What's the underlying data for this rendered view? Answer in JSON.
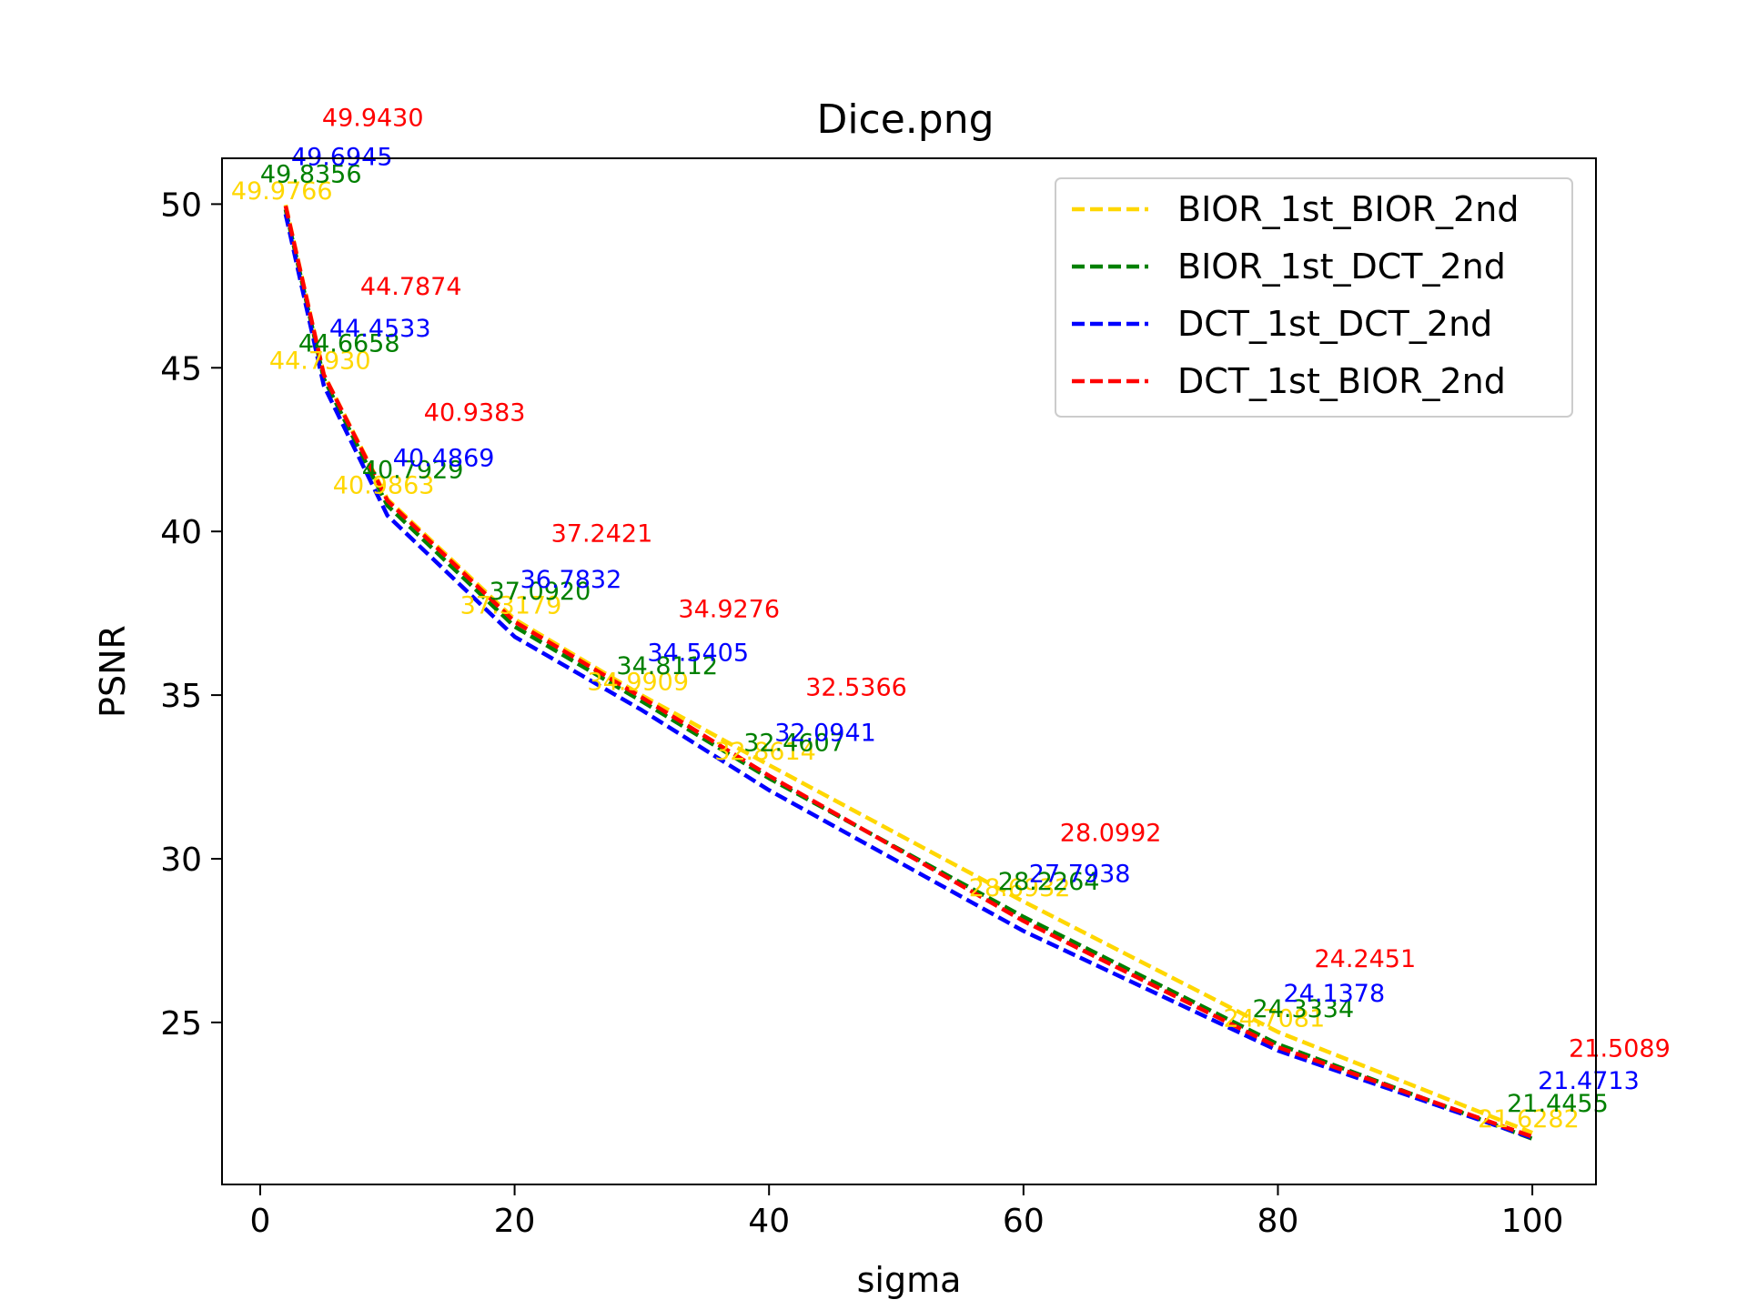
{
  "chart_data": {
    "type": "line",
    "title": "Dice.png",
    "xlabel": "sigma",
    "ylabel": "PSNR",
    "xlim": [
      -3,
      105
    ],
    "ylim": [
      20.05,
      51.4
    ],
    "xticks": [
      0,
      20,
      40,
      60,
      80,
      100
    ],
    "yticks": [
      25,
      30,
      35,
      40,
      45,
      50
    ],
    "grid": false,
    "legend_position": "top-right",
    "x": [
      2,
      5,
      10,
      20,
      30,
      40,
      60,
      80,
      100
    ],
    "series": [
      {
        "name": "BIOR_1st_BIOR_2nd",
        "color": "#FFD700",
        "values": [
          49.9766,
          44.793,
          40.9863,
          37.3179,
          34.9909,
          32.8614,
          28.6932,
          24.7081,
          21.6282
        ],
        "labels": [
          "49.9766",
          "44.7930",
          "40.9863",
          "37.3179",
          "34.9909",
          "32.8614",
          "28.6932",
          "24.7081",
          "21.6282"
        ]
      },
      {
        "name": "BIOR_1st_DCT_2nd",
        "color": "#008000",
        "values": [
          49.8356,
          44.6658,
          40.7929,
          37.092,
          34.8112,
          32.4607,
          28.2264,
          24.3334,
          21.4455
        ],
        "labels": [
          "49.8356",
          "44.6658",
          "40.7929",
          "37.0920",
          "34.8112",
          "32.4607",
          "28.2264",
          "24.3334",
          "21.4455"
        ]
      },
      {
        "name": "DCT_1st_DCT_2nd",
        "color": "#0000FF",
        "values": [
          49.6945,
          44.4533,
          40.4869,
          36.7832,
          34.5405,
          32.0941,
          27.7938,
          24.1378,
          21.4713
        ],
        "labels": [
          "49.6945",
          "44.4533",
          "40.4869",
          "36.7832",
          "34.5405",
          "32.0941",
          "27.7938",
          "24.1378",
          "21.4713"
        ]
      },
      {
        "name": "DCT_1st_BIOR_2nd",
        "color": "#FF0000",
        "values": [
          49.943,
          44.7874,
          40.9383,
          37.2421,
          34.9276,
          32.5366,
          28.0992,
          24.2451,
          21.5089
        ],
        "labels": [
          "49.9430",
          "44.7874",
          "40.9383",
          "37.2421",
          "34.9276",
          "32.5366",
          "28.0992",
          "24.2451",
          "21.5089"
        ]
      }
    ]
  }
}
